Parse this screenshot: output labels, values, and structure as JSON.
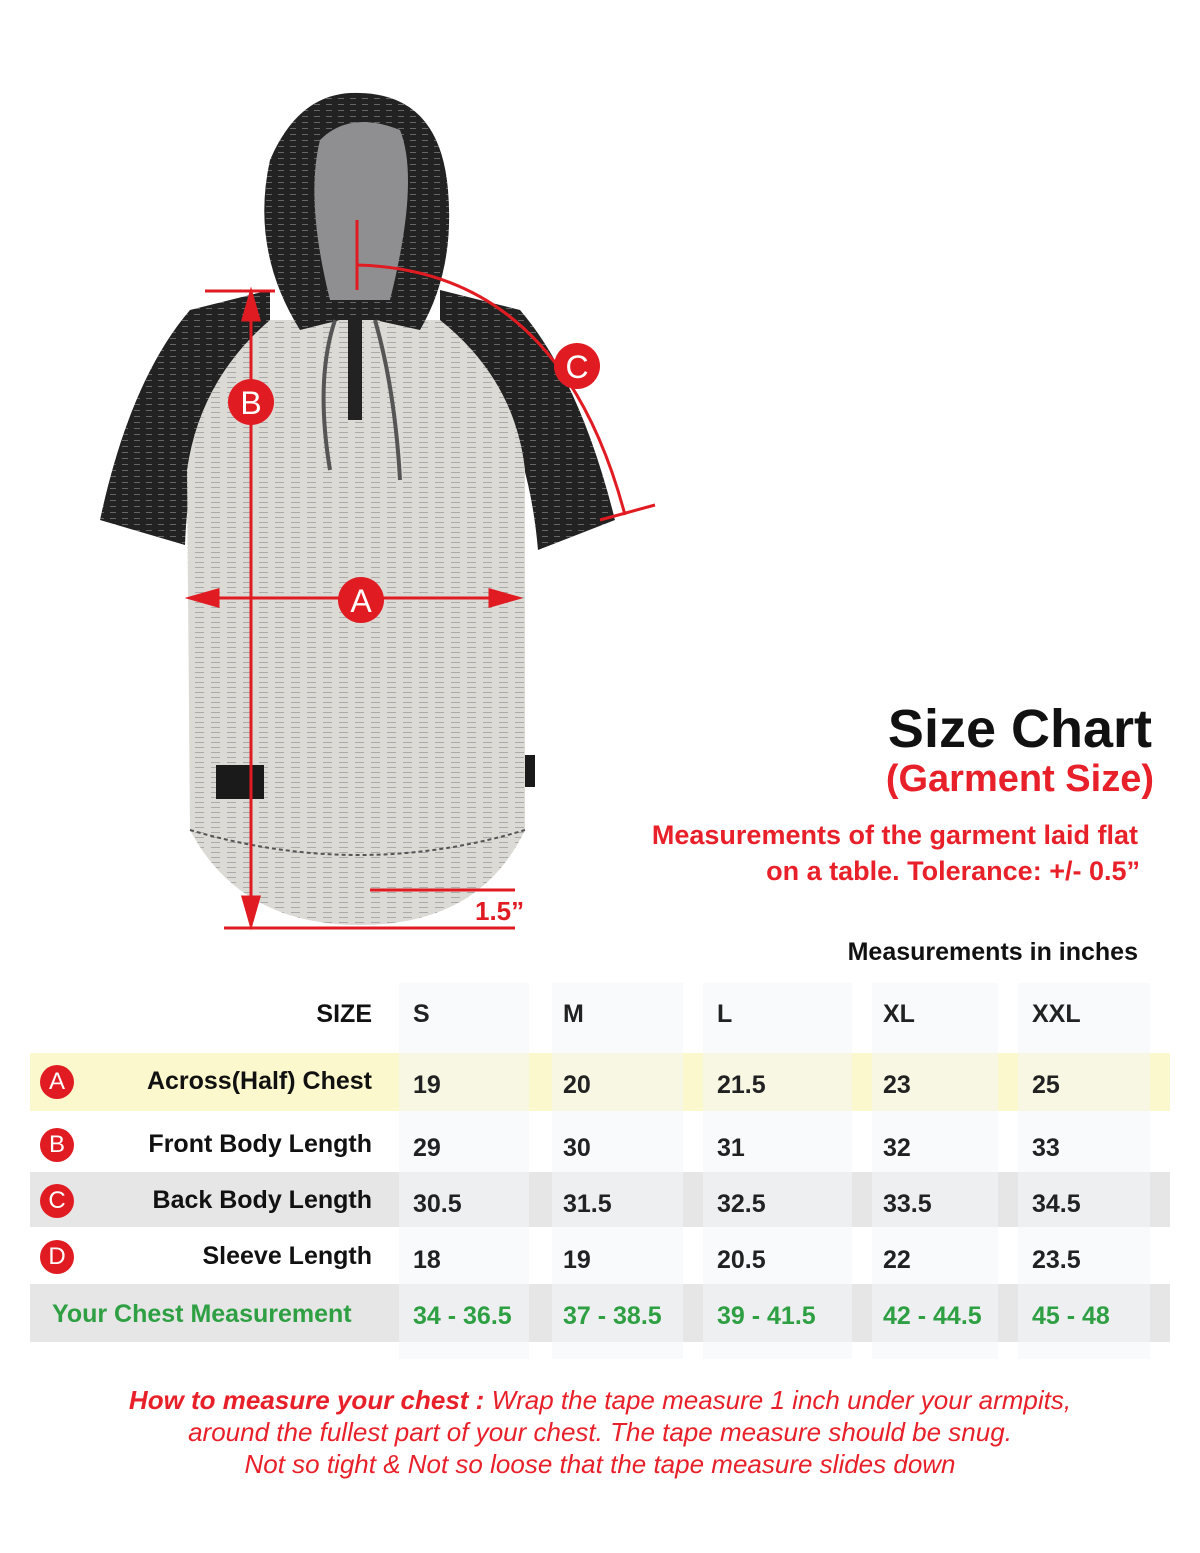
{
  "header": {
    "title": "Size Chart",
    "subtitle": "(Garment Size)",
    "note_line1": "Measurements of the garment laid flat",
    "note_line2": "on a table.  Tolerance: +/- 0.5”",
    "units": "Measurements in inches"
  },
  "diagram": {
    "labels": [
      "A",
      "B",
      "C"
    ],
    "hem_drop": "1.5”"
  },
  "table": {
    "size_header": "SIZE",
    "sizes": [
      "S",
      "M",
      "L",
      "XL",
      "XXL"
    ],
    "rows": [
      {
        "badge": "A",
        "label": "Across(Half) Chest",
        "values": [
          "19",
          "20",
          "21.5",
          "23",
          "25"
        ]
      },
      {
        "badge": "B",
        "label": "Front Body Length",
        "values": [
          "29",
          "30",
          "31",
          "32",
          "33"
        ]
      },
      {
        "badge": "C",
        "label": "Back Body Length",
        "values": [
          "30.5",
          "31.5",
          "32.5",
          "33.5",
          "34.5"
        ]
      },
      {
        "badge": "D",
        "label": "Sleeve Length",
        "values": [
          "18",
          "19",
          "20.5",
          "22",
          "23.5"
        ]
      }
    ],
    "chest_row": {
      "label": "Your Chest Measurement",
      "values": [
        "34 - 36.5",
        "37 - 38.5",
        "39 - 41.5",
        "42 - 44.5",
        "45 - 48"
      ]
    }
  },
  "howto": {
    "lead": "How to measure your chest :",
    "line1": " Wrap the tape measure 1 inch under your armpits,",
    "line2": "around the fullest part of your chest. The tape measure should be snug.",
    "line3": "Not so tight & Not so loose that the tape measure slides down"
  },
  "colors": {
    "accent": "#e11b22",
    "green": "#2ea043",
    "highlight": "#faf8cc"
  }
}
